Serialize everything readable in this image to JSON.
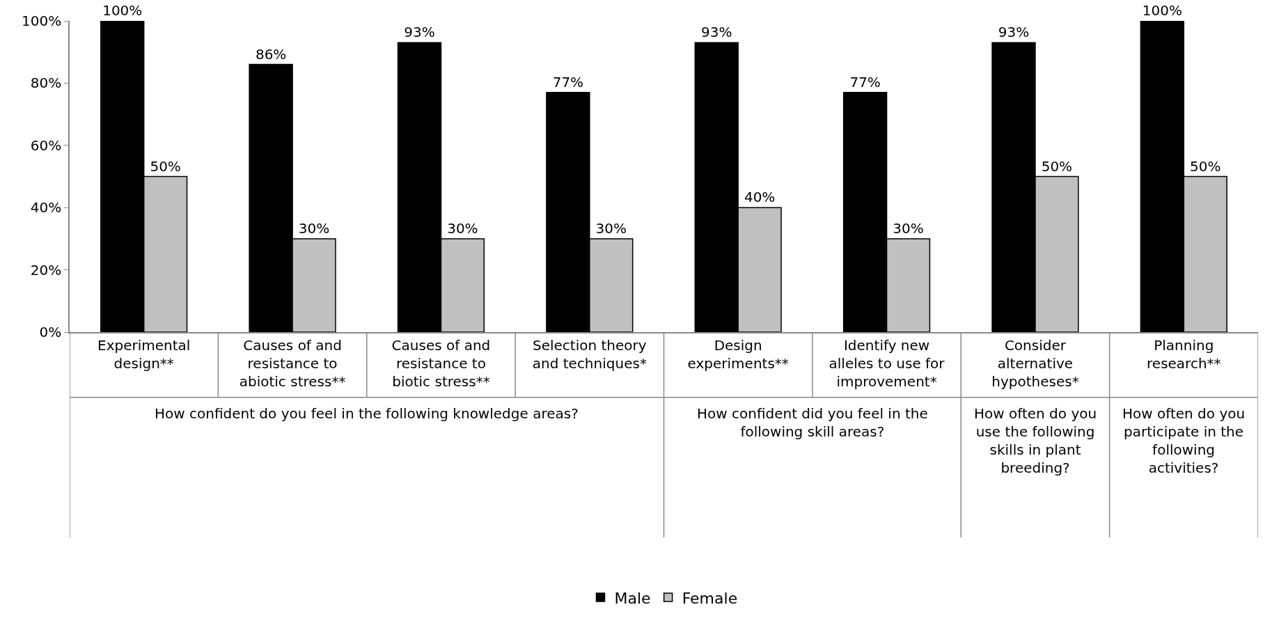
{
  "chart_data": {
    "type": "bar",
    "categories": [
      "Experimental design**",
      "Causes of and resistance to abiotic stress**",
      "Causes of and resistance to biotic stress**",
      "Selection theory and techniques*",
      "Design experiments**",
      "Identify new alleles to use for improvement*",
      "Consider alternative hypotheses*",
      "Planning research**"
    ],
    "series": [
      {
        "name": "Male",
        "color": "#000000",
        "values": [
          100,
          86,
          93,
          77,
          93,
          77,
          93,
          100
        ],
        "value_labels": [
          "100%",
          "86%",
          "93%",
          "77%",
          "93%",
          "77%",
          "93%",
          "100%"
        ]
      },
      {
        "name": "Female",
        "color": "#c0c0c0",
        "values": [
          50,
          30,
          30,
          30,
          40,
          30,
          50,
          50
        ],
        "value_labels": [
          "50%",
          "30%",
          "30%",
          "30%",
          "40%",
          "30%",
          "50%",
          "50%"
        ]
      }
    ],
    "annotations": [
      "How confident do you feel in the following knowledge areas?",
      "How confident did you feel in the following skill areas?",
      "How often do you use the following skills in plant breeding?",
      "How often do you participate in the following activities?"
    ],
    "ylim": [
      0,
      100
    ],
    "yticks": [
      {
        "value": 0,
        "label": "0%"
      },
      {
        "value": 20,
        "label": "20%"
      },
      {
        "value": 40,
        "label": "40%"
      },
      {
        "value": 60,
        "label": "60%"
      },
      {
        "value": 80,
        "label": "80%"
      },
      {
        "value": 100,
        "label": "100%"
      }
    ],
    "grid": false,
    "legend": "bottom"
  }
}
